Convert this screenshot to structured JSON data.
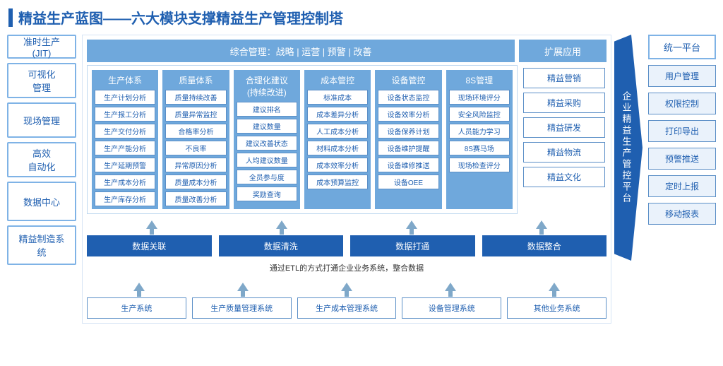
{
  "title": "精益生产蓝图——六大模块支撑精益生产管理控制塔",
  "left": [
    "准时生产\n(JIT)",
    "可视化\n管理",
    "现场管理",
    "高效\n自动化",
    "数据中心",
    "精益制造系\n统"
  ],
  "topband": {
    "main": "综合管理：战略 | 运营 | 预警 | 改善",
    "ext": "扩展应用"
  },
  "modules": [
    {
      "head": "生产体系",
      "items": [
        "生产计划分析",
        "生产报工分析",
        "生产交付分析",
        "生产产能分析",
        "生产延期预警",
        "生产成本分析",
        "生产库存分析"
      ]
    },
    {
      "head": "质量体系",
      "items": [
        "质量持续改善",
        "质量异常监控",
        "合格率分析",
        "不良率",
        "异常原因分析",
        "质量成本分析",
        "质量改善分析"
      ]
    },
    {
      "head": "合理化建议\n(持续改进)",
      "items": [
        "建议排名",
        "建议数量",
        "建议改善状态",
        "人均建议数量",
        "全员参与度",
        "奖励查询"
      ]
    },
    {
      "head": "成本管控",
      "items": [
        "标准成本",
        "成本差异分析",
        "人工成本分析",
        "材料成本分析",
        "成本效率分析",
        "成本预算监控"
      ]
    },
    {
      "head": "设备管控",
      "items": [
        "设备状态监控",
        "设备效率分析",
        "设备保养计划",
        "设备维护提醒",
        "设备维修推送",
        "设备OEE"
      ]
    },
    {
      "head": "8S管理",
      "items": [
        "现场环境评分",
        "安全风险监控",
        "人员能力学习",
        "8S赛马场",
        "现场检查评分"
      ]
    }
  ],
  "ext": [
    "精益营销",
    "精益采购",
    "精益研发",
    "精益物流",
    "精益文化"
  ],
  "platform": "企业精益生产管控平台",
  "data_row": [
    "数据关联",
    "数据清洗",
    "数据打通",
    "数据整合"
  ],
  "etl": "通过ETL的方式打通企业业务系统，整合数据",
  "sys_row": [
    "生产系统",
    "生产质量管理系统",
    "生产成本管理系统",
    "设备管理系统",
    "其他业务系统"
  ],
  "right": {
    "head": "统一平台",
    "items": [
      "用户管理",
      "权限控制",
      "打印导出",
      "预警推送",
      "定时上报",
      "移动报表"
    ]
  }
}
